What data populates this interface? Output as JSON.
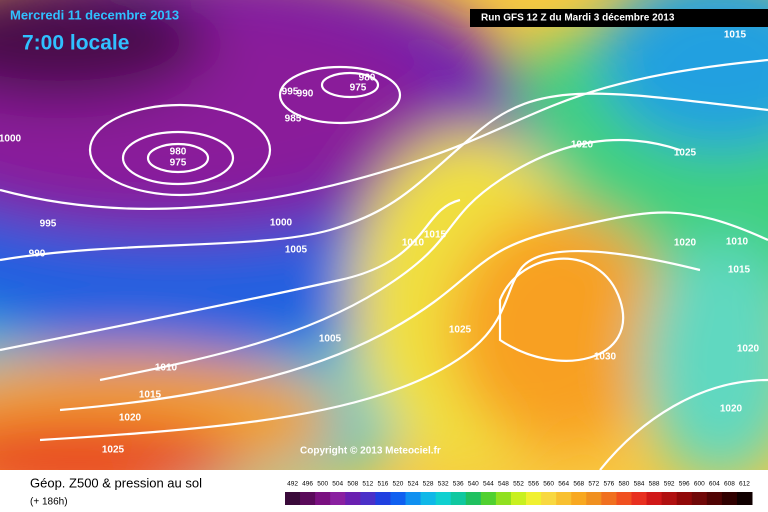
{
  "header": {
    "date": "Mercredi 11 decembre 2013",
    "time": "7:00 locale",
    "run": "Run GFS 12 Z du Mardi 3 décembre 2013"
  },
  "isobar_labels": [
    "1015",
    "980",
    "975",
    "990",
    "995",
    "985",
    "980",
    "975",
    "1000",
    "1000",
    "995",
    "990",
    "1005",
    "1010",
    "1015",
    "1005",
    "1010",
    "1015",
    "1020",
    "1025",
    "1025",
    "1020",
    "1025",
    "1020",
    "1010",
    "1015",
    "1020",
    "1030",
    "1020"
  ],
  "copyright": "Copyright © 2013 Meteociel.fr",
  "legend": {
    "title": "Géop. Z500 & pression au sol",
    "subtitle": "(+ 186h)",
    "ticks": [
      492,
      496,
      500,
      504,
      508,
      512,
      516,
      520,
      524,
      528,
      532,
      536,
      540,
      544,
      548,
      552,
      556,
      560,
      564,
      568,
      572,
      576,
      580,
      584,
      588,
      592,
      596,
      600,
      604,
      608,
      612
    ],
    "colors": [
      "#3a0a3a",
      "#5a0a5a",
      "#7a1080",
      "#8a20a0",
      "#6a20b0",
      "#4a30c8",
      "#2040e0",
      "#1060f0",
      "#1090f0",
      "#10b8e8",
      "#10d0d0",
      "#10c8a0",
      "#20c060",
      "#50d030",
      "#90e020",
      "#c8f020",
      "#f0f030",
      "#f8d840",
      "#f8c030",
      "#f8a820",
      "#f09020",
      "#f07020",
      "#f05020",
      "#e83020",
      "#d01818",
      "#b01010",
      "#900808",
      "#700808",
      "#500404",
      "#300000",
      "#100000"
    ]
  }
}
